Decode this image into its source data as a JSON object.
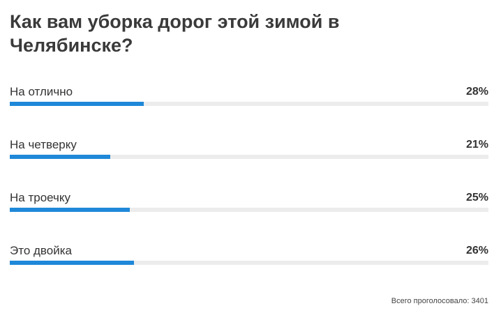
{
  "chart_data": {
    "type": "bar",
    "orientation": "horizontal",
    "title": "Как вам уборка дорог этой зимой в Челябинске?",
    "categories": [
      "На отлично",
      "На четверку",
      "На троечку",
      "Это двойка"
    ],
    "values": [
      28,
      21,
      25,
      26
    ],
    "value_labels": [
      "28%",
      "21%",
      "25%",
      "26%"
    ],
    "color": "#1f88d8",
    "xlim": [
      0,
      100
    ],
    "footer": "Всего проголосовало: 3401"
  }
}
